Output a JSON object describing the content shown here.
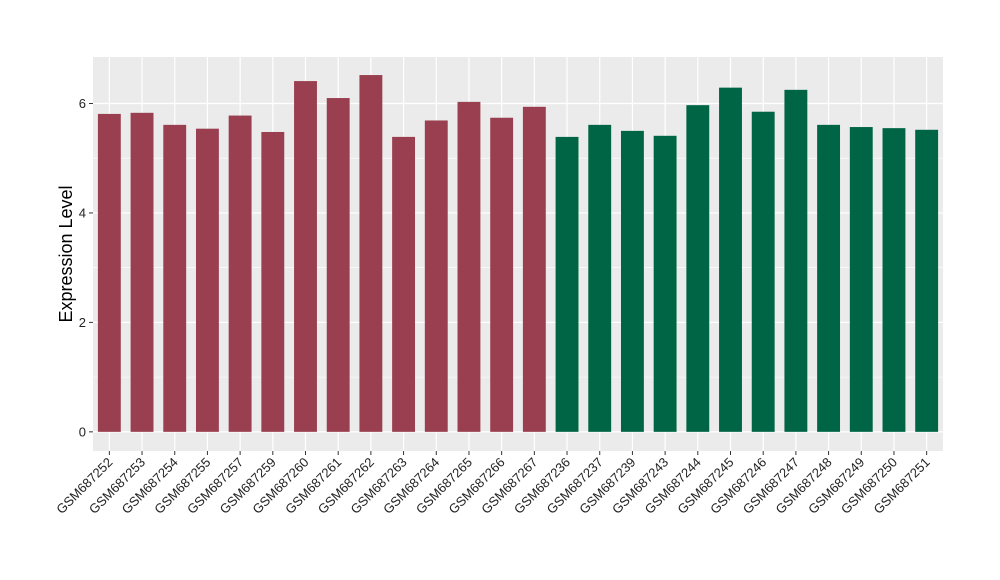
{
  "chart_data": {
    "type": "bar",
    "title": "",
    "xlabel": "",
    "ylabel": "Expression Level",
    "ylim": [
      -0.35,
      6.85
    ],
    "yticks": [
      0,
      2,
      4,
      6
    ],
    "grid": true,
    "legend": "none",
    "panel_background": "#ebebeb",
    "categories": [
      "GSM687252",
      "GSM687253",
      "GSM687254",
      "GSM687255",
      "GSM687257",
      "GSM687259",
      "GSM687260",
      "GSM687261",
      "GSM687262",
      "GSM687263",
      "GSM687264",
      "GSM687265",
      "GSM687266",
      "GSM687267",
      "GSM687236",
      "GSM687237",
      "GSM687239",
      "GSM687243",
      "GSM687244",
      "GSM687245",
      "GSM687246",
      "GSM687247",
      "GSM687248",
      "GSM687249",
      "GSM687250",
      "GSM687251"
    ],
    "values": [
      5.81,
      5.83,
      5.61,
      5.54,
      5.78,
      5.48,
      6.41,
      6.1,
      6.52,
      5.39,
      5.69,
      6.03,
      5.74,
      5.94,
      5.39,
      5.61,
      5.5,
      5.41,
      5.97,
      6.29,
      5.85,
      6.25,
      5.61,
      5.57,
      5.55,
      5.52
    ],
    "group_colors": [
      "#9a3f4f",
      "#9a3f4f",
      "#9a3f4f",
      "#9a3f4f",
      "#9a3f4f",
      "#9a3f4f",
      "#9a3f4f",
      "#9a3f4f",
      "#9a3f4f",
      "#9a3f4f",
      "#9a3f4f",
      "#9a3f4f",
      "#9a3f4f",
      "#9a3f4f",
      "#006544",
      "#006544",
      "#006544",
      "#006544",
      "#006544",
      "#006544",
      "#006544",
      "#006544",
      "#006544",
      "#006544",
      "#006544",
      "#006544"
    ]
  }
}
